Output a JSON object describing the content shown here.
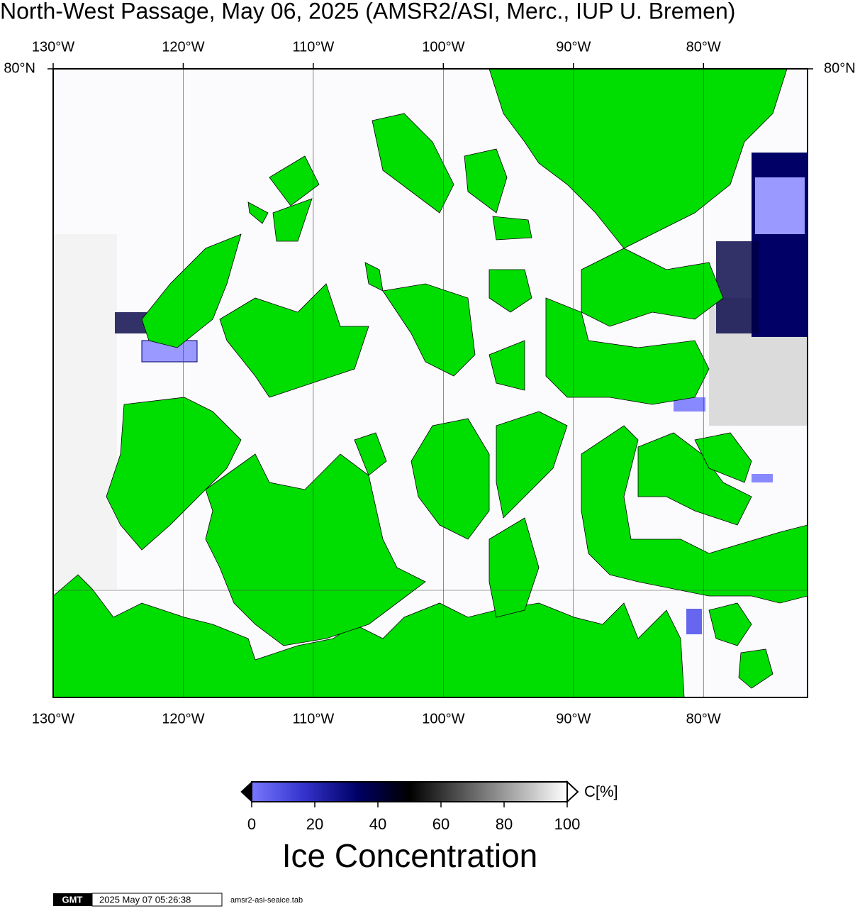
{
  "title": "North-West Passage, May 06, 2025 (AMSR2/ASI, Merc., IUP U. Bremen)",
  "map": {
    "lonlim": [
      -130,
      -72
    ],
    "lon_ticks": [
      {
        "value": -130,
        "label": "130°W"
      },
      {
        "value": -120,
        "label": "120°W"
      },
      {
        "value": -110,
        "label": "110°W"
      },
      {
        "value": -100,
        "label": "100°W"
      },
      {
        "value": -90,
        "label": "90°W"
      },
      {
        "value": -80,
        "label": "80°W"
      }
    ],
    "lat_ticks": [
      {
        "value": 80,
        "label": "80°N"
      }
    ],
    "land_color": "#00dd00"
  },
  "colorbar": {
    "range": [
      0,
      100
    ],
    "ticks": [
      0,
      20,
      40,
      60,
      80,
      100
    ],
    "unit": "C[%]",
    "label": "Ice Concentration",
    "colors": [
      "#7777ff",
      "#3333cc",
      "#000066",
      "#000000",
      "#555555",
      "#aaaaaa",
      "#ffffff"
    ]
  },
  "footer": {
    "logo": "GMT",
    "timestamp": "2025 May 07 05:26:38",
    "file": "amsr2-asi-seaice.tab"
  }
}
